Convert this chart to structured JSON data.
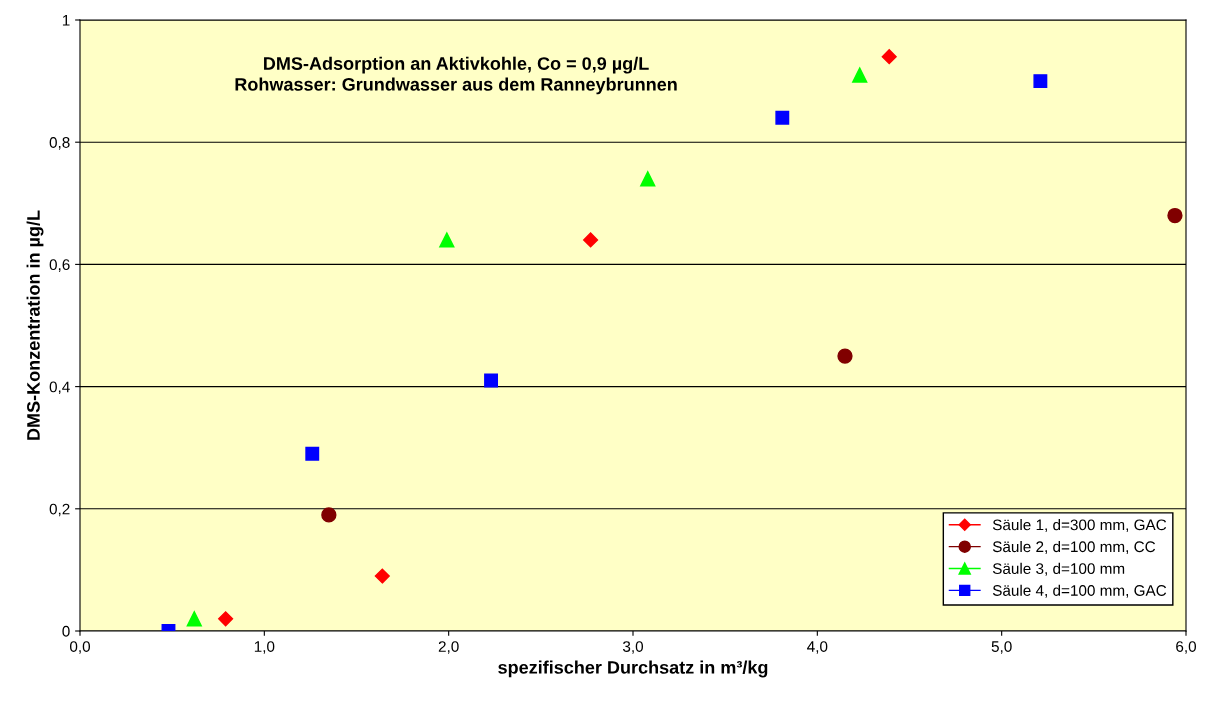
{
  "chart_data": {
    "type": "scatter",
    "xlabel": "spezifischer Durchsatz in m³/kg",
    "ylabel": "DMS-Konzentration in µg/L",
    "annotations": [
      "DMS-Adsorption an Aktivkohle, Co = 0,9 µg/L\nRohwasser: Grundwasser aus dem Ranneybrunnen"
    ],
    "series": [
      {
        "name": "Säule 1, d=300 mm, GAC",
        "color": "#ff0000",
        "marker": "diamond",
        "x": [
          0.79,
          1.64,
          2.77,
          4.39
        ],
        "values": [
          0.02,
          0.09,
          0.64,
          0.94
        ]
      },
      {
        "name": "Säule 2, d=100 mm, CC",
        "color": "#800000",
        "marker": "circle",
        "x": [
          1.35,
          4.15,
          5.94
        ],
        "values": [
          0.19,
          0.45,
          0.68
        ]
      },
      {
        "name": "Säule 3, d=100 mm",
        "color": "#00ff00",
        "marker": "triangle",
        "x": [
          0.62,
          1.99,
          3.08,
          4.23
        ],
        "values": [
          0.02,
          0.64,
          0.74,
          0.91
        ]
      },
      {
        "name": "Säule 4, d=100 mm, GAC",
        "color": "#0000ff",
        "marker": "square",
        "x": [
          0.48,
          1.26,
          2.23,
          3.81,
          5.21
        ],
        "values": [
          0.0,
          0.29,
          0.41,
          0.84,
          0.9
        ]
      }
    ],
    "xlim": [
      0,
      6
    ],
    "xticks": [
      {
        "value": 0,
        "label": "0,0"
      },
      {
        "value": 1,
        "label": "1,0"
      },
      {
        "value": 2,
        "label": "2,0"
      },
      {
        "value": 3,
        "label": "3,0"
      },
      {
        "value": 4,
        "label": "4,0"
      },
      {
        "value": 5,
        "label": "5,0"
      },
      {
        "value": 6,
        "label": "6,0"
      }
    ],
    "ylim": [
      0,
      1
    ],
    "yticks": [
      0,
      {
        "value": 0.2,
        "label": "0,2"
      },
      {
        "value": 0.4,
        "label": "0,4"
      },
      {
        "value": 0.6,
        "label": "0,6"
      },
      {
        "value": 0.8,
        "label": "0,8"
      },
      1
    ],
    "grid": "y",
    "legend": "bottom right"
  }
}
